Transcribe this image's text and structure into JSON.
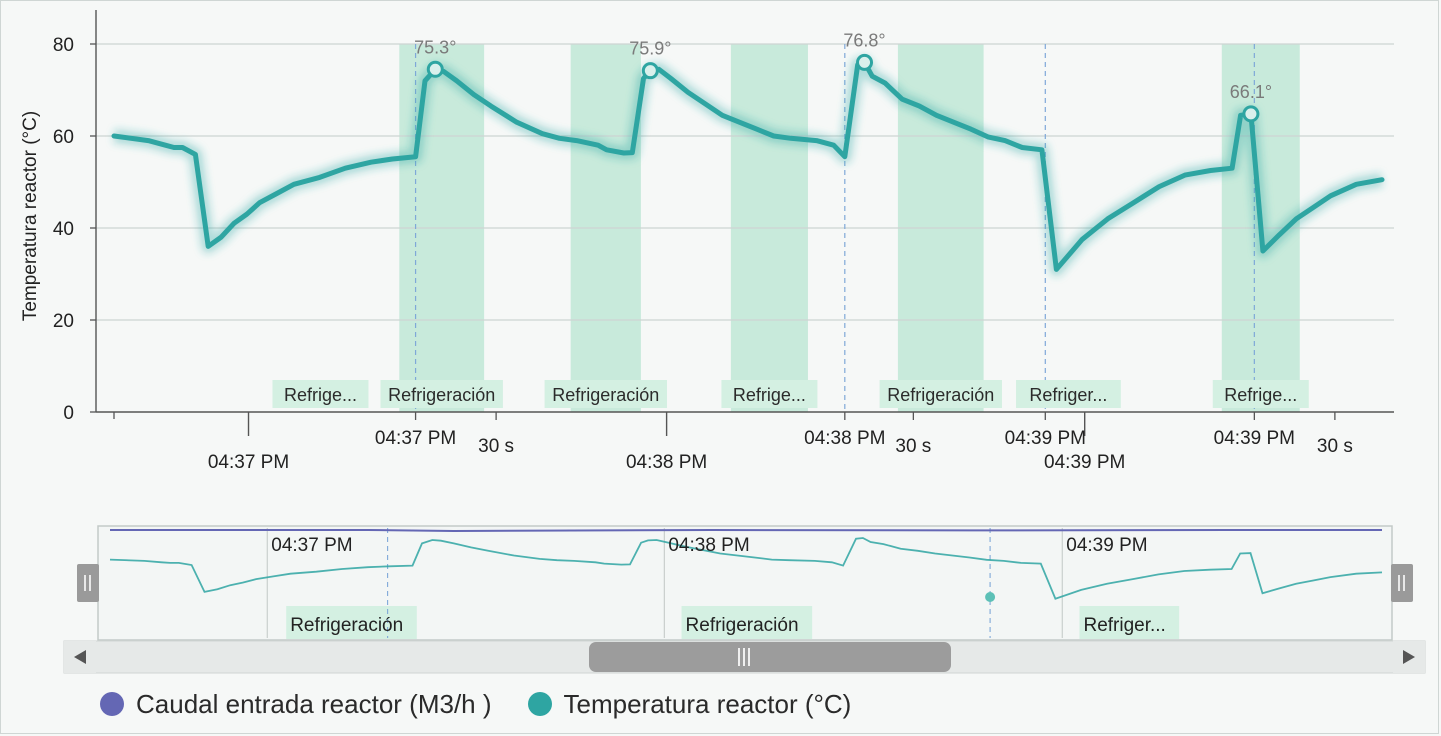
{
  "chart_data": {
    "type": "line",
    "ylabel": "Temperatura reactor (°C)",
    "ylim": [
      0,
      80
    ],
    "y_ticks": [
      "0",
      "20",
      "40",
      "60",
      "80"
    ],
    "grid": true,
    "legend_position": "bottom",
    "x_ticks_major": [
      {
        "t": 15.7,
        "label": "04:37 PM"
      },
      {
        "t": 64.5,
        "label": "04:38 PM"
      },
      {
        "t": 113.3,
        "label": "04:39 PM"
      }
    ],
    "x_ticks_minor": [
      {
        "t": 35.2,
        "label": "04:37 PM"
      },
      {
        "t": 44.6,
        "label": "30 s"
      },
      {
        "t": 85.3,
        "label": "04:38 PM"
      },
      {
        "t": 93.3,
        "label": "30 s"
      },
      {
        "t": 108.7,
        "label": "04:39 PM"
      },
      {
        "t": 133.1,
        "label": "04:39 PM"
      },
      {
        "t": 142.5,
        "label": "30 s"
      }
    ],
    "bands": [
      {
        "start": 22.5,
        "end": 25.7,
        "label": "Refrige...",
        "strong": false
      },
      {
        "start": 33.3,
        "end": 43.2,
        "label": "Refrigeración",
        "strong": true
      },
      {
        "start": 53.3,
        "end": 61.5,
        "label": "Refrigeración",
        "strong": true
      },
      {
        "start": 72.0,
        "end": 81.0,
        "label": "Refrige...",
        "strong": true
      },
      {
        "start": 91.5,
        "end": 101.5,
        "label": "Refrigeración",
        "strong": true
      },
      {
        "start": 109.8,
        "end": 113.0,
        "label": "Refriger...",
        "strong": false
      },
      {
        "start": 129.3,
        "end": 138.4,
        "label": "Refrige...",
        "strong": true
      }
    ],
    "vlines": [
      35.2,
      85.3,
      108.7,
      133.1
    ],
    "series": [
      {
        "name": "Temperatura reactor (°C)",
        "color": "#2ea5a2",
        "points": [
          [
            0,
            60
          ],
          [
            4,
            59
          ],
          [
            6,
            58
          ],
          [
            7,
            57.5
          ],
          [
            8,
            57.5
          ],
          [
            9.5,
            56
          ],
          [
            11,
            36
          ],
          [
            12.5,
            38
          ],
          [
            14,
            41
          ],
          [
            15.5,
            43
          ],
          [
            17,
            45.5
          ],
          [
            19,
            47.5
          ],
          [
            21,
            49.5
          ],
          [
            24,
            51
          ],
          [
            27,
            53
          ],
          [
            30,
            54.3
          ],
          [
            32.5,
            55
          ],
          [
            35.2,
            55.5
          ],
          [
            36.3,
            72
          ],
          [
            37.5,
            74.5
          ],
          [
            38.5,
            74
          ],
          [
            40,
            72
          ],
          [
            42,
            69
          ],
          [
            44,
            66.5
          ],
          [
            47,
            63
          ],
          [
            50,
            60.5
          ],
          [
            52,
            59.5
          ],
          [
            54,
            59
          ],
          [
            56.5,
            58
          ],
          [
            57.5,
            57
          ],
          [
            59.5,
            56.3
          ],
          [
            60.5,
            56.4
          ],
          [
            61.8,
            72.5
          ],
          [
            62.6,
            74.2
          ],
          [
            63.6,
            74.5
          ],
          [
            65,
            72.5
          ],
          [
            67,
            69.5
          ],
          [
            69,
            67
          ],
          [
            71,
            64.5
          ],
          [
            73,
            63
          ],
          [
            75,
            61.5
          ],
          [
            77,
            60
          ],
          [
            79,
            59.5
          ],
          [
            82,
            59
          ],
          [
            84,
            58
          ],
          [
            85.3,
            55.5
          ],
          [
            86.8,
            75.5
          ],
          [
            87.6,
            76
          ],
          [
            88.5,
            73
          ],
          [
            90,
            71.5
          ],
          [
            92,
            68
          ],
          [
            94,
            66.5
          ],
          [
            96,
            64.5
          ],
          [
            98,
            63
          ],
          [
            100,
            61.5
          ],
          [
            102,
            59.8
          ],
          [
            104,
            59
          ],
          [
            106,
            57.5
          ],
          [
            108.3,
            57
          ],
          [
            110,
            31
          ],
          [
            113,
            37.5
          ],
          [
            116,
            42
          ],
          [
            119,
            45.5
          ],
          [
            122,
            49
          ],
          [
            125,
            51.5
          ],
          [
            128,
            52.5
          ],
          [
            130.5,
            53
          ],
          [
            131.5,
            64.5
          ],
          [
            132.7,
            64.8
          ],
          [
            134.1,
            35
          ],
          [
            136,
            38.5
          ],
          [
            138,
            42
          ],
          [
            140,
            44.5
          ],
          [
            142,
            47
          ],
          [
            145,
            49.5
          ],
          [
            148,
            50.5
          ]
        ],
        "peaks": [
          {
            "x": 37.5,
            "y": 74.5,
            "label": "75.3°"
          },
          {
            "x": 62.6,
            "y": 74.2,
            "label": "75.9°"
          },
          {
            "x": 87.6,
            "y": 76,
            "label": "76.8°"
          },
          {
            "x": 132.7,
            "y": 64.8,
            "label": "66.1°"
          }
        ]
      },
      {
        "name": "Caudal entrada reactor (M3/h )",
        "color": "#6467b4",
        "points": [
          [
            0,
            0.5
          ],
          [
            30,
            0.5
          ],
          [
            40,
            0.45
          ],
          [
            70,
            0.5
          ],
          [
            100,
            0.48
          ],
          [
            130,
            0.5
          ],
          [
            148,
            0.5
          ]
        ]
      }
    ]
  },
  "navigator": {
    "x_ticks": [
      {
        "t": 18.3,
        "label": "04:37 PM"
      },
      {
        "t": 64.5,
        "label": "04:38 PM"
      },
      {
        "t": 110.8,
        "label": "04:39 PM"
      }
    ],
    "bands": [
      {
        "start": 20.5,
        "end": 35.7,
        "label": "Refrigeración"
      },
      {
        "start": 66.5,
        "end": 81.7,
        "label": "Refrigeración"
      },
      {
        "start": 112.8,
        "end": 124.4,
        "label": "Refriger..."
      }
    ],
    "vlines": [
      32.3,
      102.4
    ],
    "marker_at": 102.4,
    "scroll_left_icon": "arrow-left-icon",
    "scroll_right_icon": "arrow-right-icon",
    "handle_icon": "grip-icon"
  },
  "legend": {
    "items": [
      {
        "label": "Caudal entrada reactor (M3/h )",
        "color": "#6467b4"
      },
      {
        "label": "Temperatura reactor (°C)",
        "color": "#2ea5a2"
      }
    ]
  },
  "colors": {
    "temperature": "#2ea5a2",
    "flow": "#6467b4",
    "band": "#bfe8d6",
    "band_label_bg": "#d4f0e2",
    "grid": "#cdd4d2",
    "dashed_line": "#7fa8d8"
  }
}
